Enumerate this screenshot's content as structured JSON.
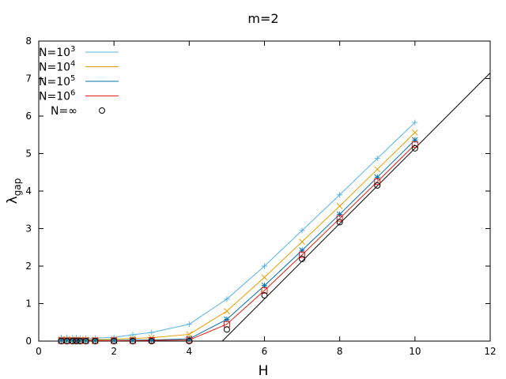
{
  "chart_data": {
    "type": "line",
    "title": "m=2",
    "xlabel": "H",
    "ylabel": "λgap",
    "ylabel_main": "λ",
    "ylabel_sub": "gap",
    "xlim": [
      0,
      12
    ],
    "ylim": [
      0,
      8
    ],
    "xticks": [
      "0",
      "2",
      "4",
      "6",
      "8",
      "10",
      "12"
    ],
    "yticks": [
      "0",
      "1",
      "2",
      "3",
      "4",
      "5",
      "6",
      "7",
      "8"
    ],
    "grid": false,
    "legend_position": "top-left",
    "x": [
      0.6,
      0.75,
      0.9,
      1.0,
      1.1,
      1.25,
      1.5,
      2.0,
      2.5,
      3.0,
      4.0,
      5.0,
      6.0,
      7.0,
      8.0,
      9.0,
      10.0
    ],
    "series": [
      {
        "name": "N=10³",
        "legend_base": "N=10",
        "legend_exp": "3",
        "color": "#56b4e9",
        "marker": "plus",
        "line": true,
        "values": [
          0.1,
          0.1,
          0.09,
          0.09,
          0.08,
          0.08,
          0.08,
          0.1,
          0.17,
          0.23,
          0.45,
          1.12,
          2.0,
          2.95,
          3.9,
          4.87,
          5.83
        ]
      },
      {
        "name": "N=10⁴",
        "legend_base": "N=10",
        "legend_exp": "4",
        "color": "#e69f00",
        "marker": "x",
        "line": true,
        "values": [
          0.05,
          0.05,
          0.04,
          0.04,
          0.04,
          0.04,
          0.04,
          0.05,
          0.07,
          0.09,
          0.18,
          0.8,
          1.7,
          2.65,
          3.6,
          4.58,
          5.56
        ]
      },
      {
        "name": "N=10⁵",
        "legend_base": "N=10",
        "legend_exp": "5",
        "color": "#0072b2",
        "marker": "star",
        "line": true,
        "values": [
          0.02,
          0.02,
          0.02,
          0.02,
          0.02,
          0.02,
          0.02,
          0.02,
          0.03,
          0.03,
          0.06,
          0.58,
          1.48,
          2.42,
          3.38,
          4.37,
          5.36
        ]
      },
      {
        "name": "N=10⁶",
        "legend_base": "N=10",
        "legend_exp": "6",
        "color": "#e51e10",
        "marker": "square",
        "line": true,
        "values": [
          0.01,
          0.01,
          0.01,
          0.01,
          0.01,
          0.01,
          0.01,
          0.01,
          0.01,
          0.02,
          0.03,
          0.45,
          1.35,
          2.3,
          3.27,
          4.25,
          5.24
        ]
      },
      {
        "name": "N=∞",
        "color": "#000000",
        "marker": "circle",
        "line": false,
        "values": [
          0.0,
          0.0,
          0.0,
          0.0,
          0.0,
          0.0,
          0.0,
          0.0,
          0.0,
          0.0,
          0.0,
          0.31,
          1.22,
          2.19,
          3.17,
          4.15,
          5.14
        ]
      }
    ],
    "reference_line": {
      "color": "#000000",
      "x": [
        4.88,
        12.0
      ],
      "y": [
        0.0,
        7.15
      ]
    },
    "baseline": {
      "color": "#000000",
      "x": [
        0.6,
        4.88
      ],
      "y": [
        0.0,
        0.0
      ]
    }
  }
}
